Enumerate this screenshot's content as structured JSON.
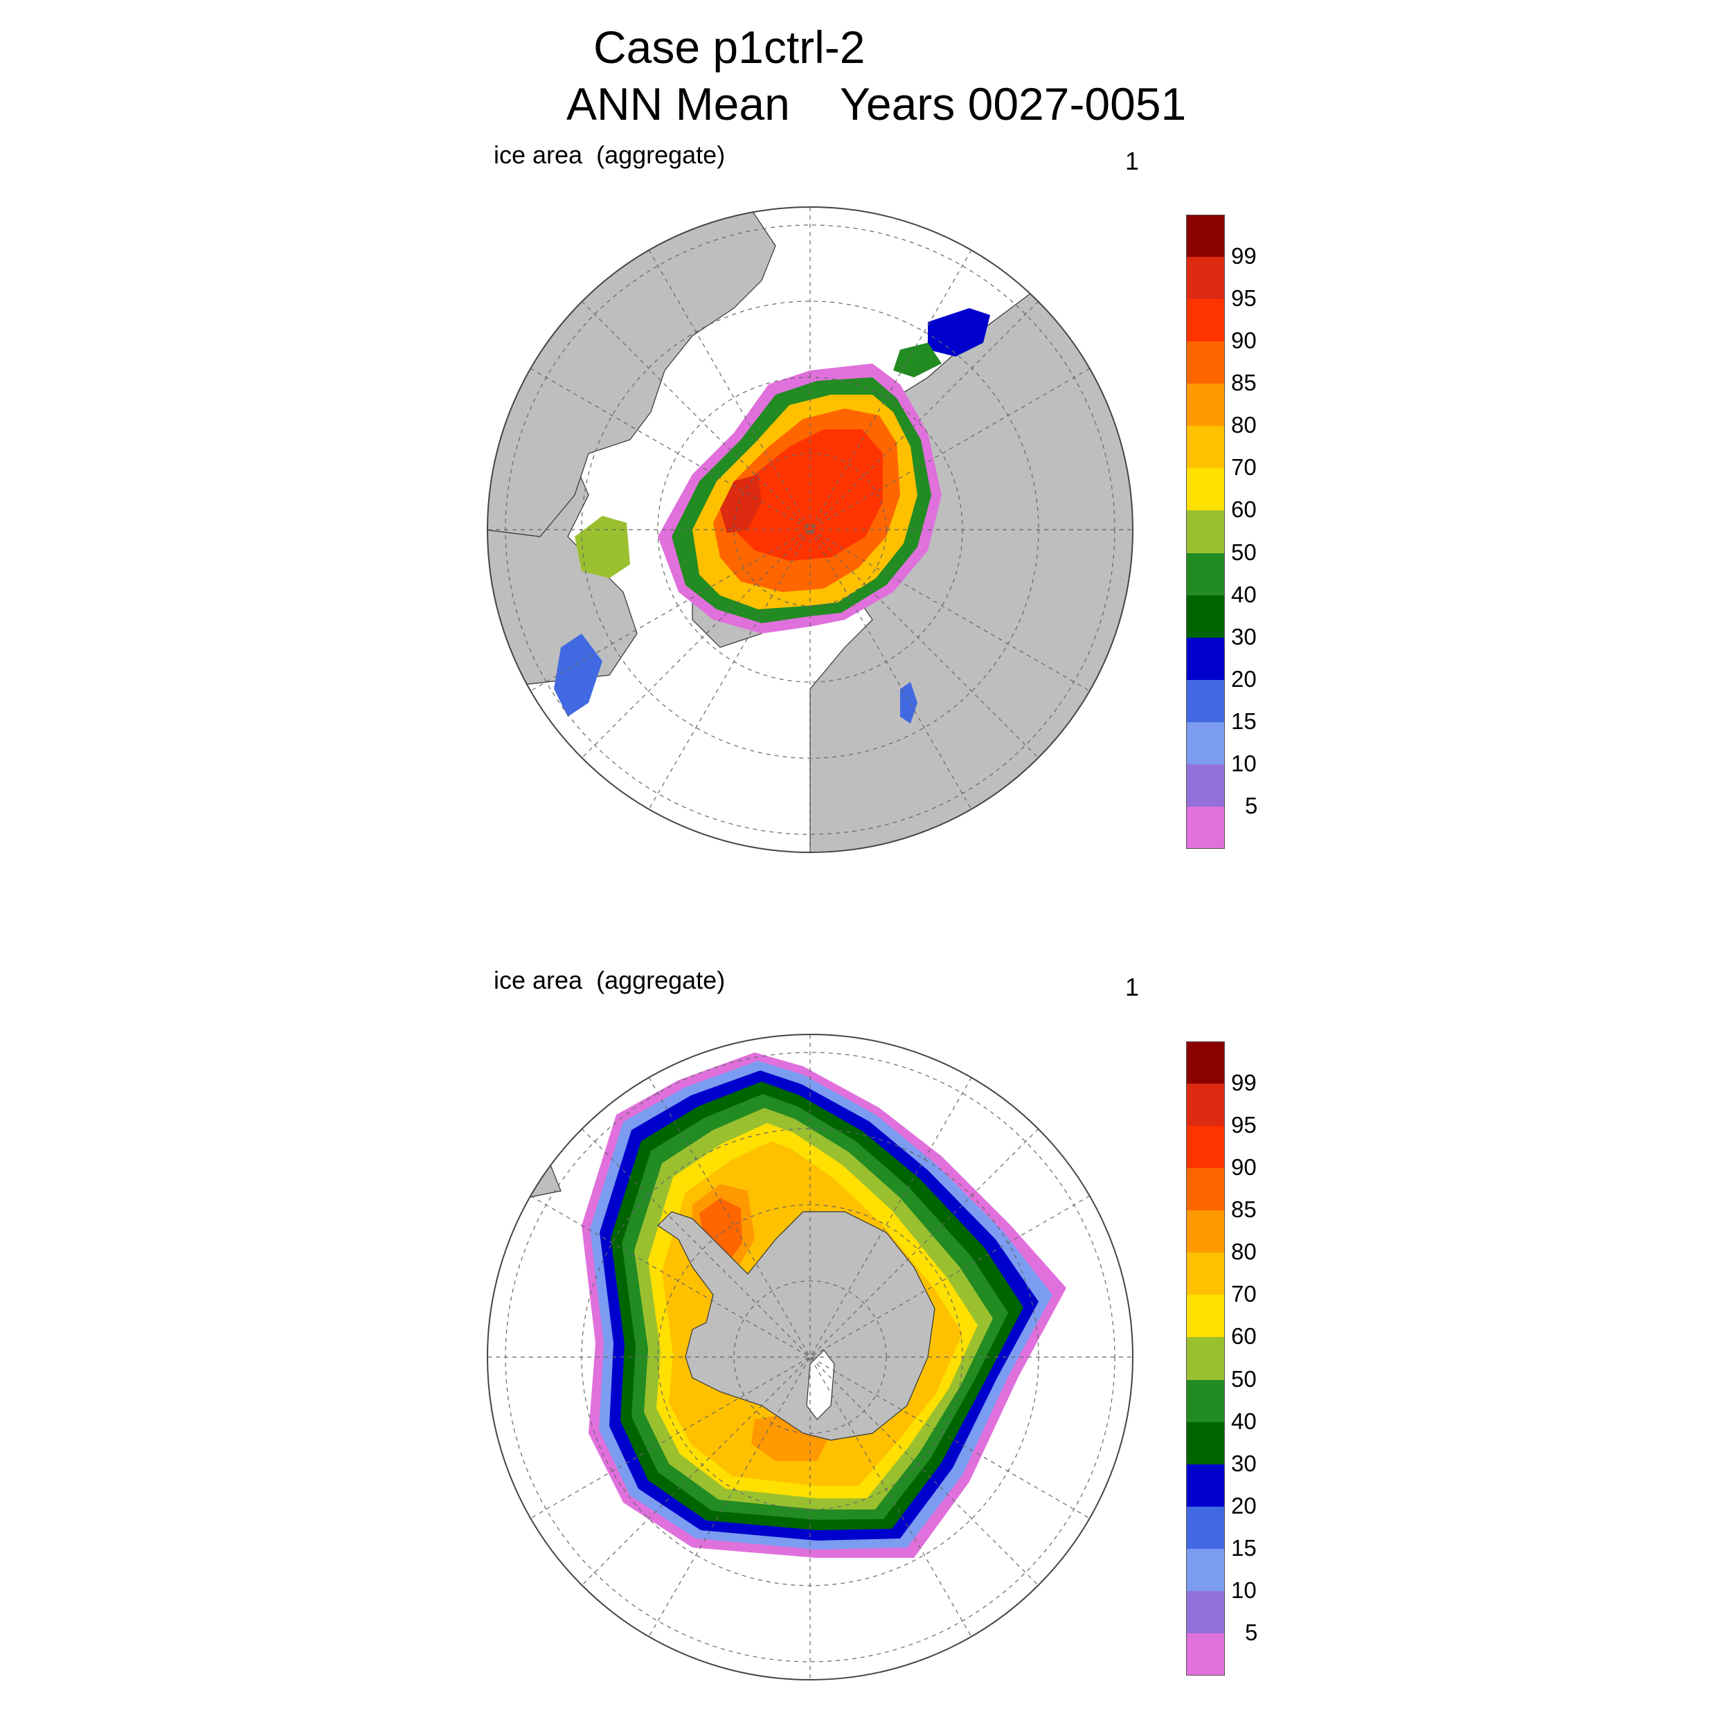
{
  "header": {
    "title_line1": "Case p1ctrl-2",
    "title_line2": "ANN Mean    Years 0027-0051"
  },
  "panels": [
    {
      "id": "north",
      "label": "ice area  (aggregate)",
      "index": "1",
      "hemisphere": "Northern"
    },
    {
      "id": "south",
      "label": "ice area  (aggregate)",
      "index": "1",
      "hemisphere": "Southern"
    }
  ],
  "colorbar": {
    "levels": [
      "99",
      "95",
      "90",
      "85",
      "80",
      "70",
      "60",
      "50",
      "40",
      "30",
      "20",
      "15",
      "10",
      "5"
    ],
    "colors": [
      "#8b0000",
      "#dd2a10",
      "#ff3300",
      "#ff6600",
      "#ff9900",
      "#ffc000",
      "#ffe000",
      "#9ac030",
      "#228b22",
      "#006400",
      "#0000cd",
      "#4169e1",
      "#7b9cf0",
      "#9370db",
      "#e070dc"
    ]
  },
  "colors": {
    "land": "#bebebe",
    "ocean": "#ffffff",
    "grid": "#666666"
  }
}
